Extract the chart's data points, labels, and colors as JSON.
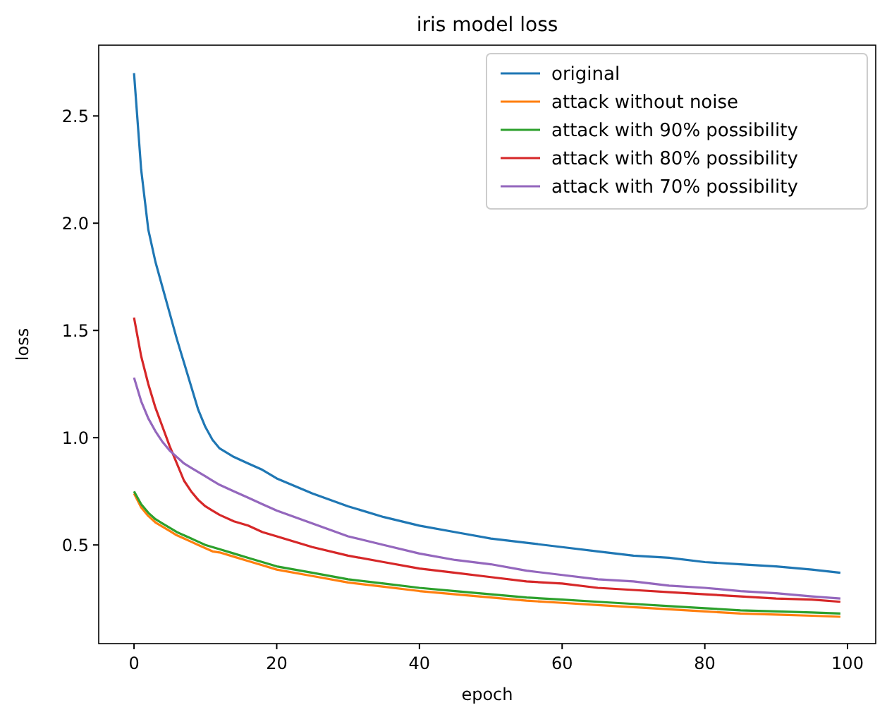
{
  "chart_data": {
    "type": "line",
    "title": "iris model loss",
    "xlabel": "epoch",
    "ylabel": "loss",
    "x": [
      0,
      1,
      2,
      3,
      4,
      5,
      6,
      7,
      8,
      9,
      10,
      11,
      12,
      14,
      16,
      18,
      20,
      25,
      30,
      35,
      40,
      45,
      50,
      55,
      60,
      65,
      70,
      75,
      80,
      85,
      90,
      95,
      99
    ],
    "series": [
      {
        "name": "original",
        "color": "#1f77b4",
        "values": [
          2.7,
          2.25,
          1.97,
          1.82,
          1.7,
          1.58,
          1.46,
          1.35,
          1.24,
          1.13,
          1.05,
          0.99,
          0.95,
          0.91,
          0.88,
          0.85,
          0.81,
          0.74,
          0.68,
          0.63,
          0.59,
          0.56,
          0.53,
          0.51,
          0.49,
          0.47,
          0.45,
          0.44,
          0.42,
          0.41,
          0.4,
          0.385,
          0.37
        ]
      },
      {
        "name": "attack without noise",
        "color": "#ff7f0e",
        "values": [
          0.74,
          0.675,
          0.635,
          0.605,
          0.585,
          0.565,
          0.545,
          0.53,
          0.515,
          0.5,
          0.485,
          0.47,
          0.465,
          0.445,
          0.425,
          0.405,
          0.385,
          0.355,
          0.325,
          0.305,
          0.285,
          0.27,
          0.255,
          0.24,
          0.23,
          0.22,
          0.21,
          0.2,
          0.19,
          0.18,
          0.175,
          0.17,
          0.165
        ]
      },
      {
        "name": "attack with 90% possibility",
        "color": "#2ca02c",
        "values": [
          0.75,
          0.69,
          0.65,
          0.62,
          0.6,
          0.58,
          0.56,
          0.545,
          0.53,
          0.515,
          0.5,
          0.49,
          0.48,
          0.46,
          0.44,
          0.42,
          0.4,
          0.37,
          0.34,
          0.32,
          0.3,
          0.285,
          0.27,
          0.255,
          0.245,
          0.235,
          0.225,
          0.215,
          0.205,
          0.195,
          0.19,
          0.185,
          0.18
        ]
      },
      {
        "name": "attack with 80% possibility",
        "color": "#d62728",
        "values": [
          1.56,
          1.38,
          1.25,
          1.14,
          1.05,
          0.96,
          0.88,
          0.8,
          0.75,
          0.71,
          0.68,
          0.66,
          0.64,
          0.61,
          0.59,
          0.56,
          0.54,
          0.49,
          0.45,
          0.42,
          0.39,
          0.37,
          0.35,
          0.33,
          0.32,
          0.3,
          0.29,
          0.28,
          0.27,
          0.26,
          0.25,
          0.245,
          0.235
        ]
      },
      {
        "name": "attack with 70% possibility",
        "color": "#9467bd",
        "values": [
          1.28,
          1.17,
          1.09,
          1.03,
          0.98,
          0.94,
          0.91,
          0.88,
          0.86,
          0.84,
          0.82,
          0.8,
          0.78,
          0.75,
          0.72,
          0.69,
          0.66,
          0.6,
          0.54,
          0.5,
          0.46,
          0.43,
          0.41,
          0.38,
          0.36,
          0.34,
          0.33,
          0.31,
          0.3,
          0.285,
          0.275,
          0.26,
          0.25
        ]
      }
    ],
    "xlim": [
      -4.95,
      103.95
    ],
    "ylim": [
      0.04,
      2.83
    ],
    "xticks": [
      0,
      20,
      40,
      60,
      80,
      100
    ],
    "yticks": [
      0.5,
      {
        "value": 1,
        "label": "1.0"
      },
      1.5,
      {
        "value": 2,
        "label": "2.0"
      },
      2.5
    ],
    "legend": "top right",
    "grid": false,
    "line_style": "solid"
  }
}
